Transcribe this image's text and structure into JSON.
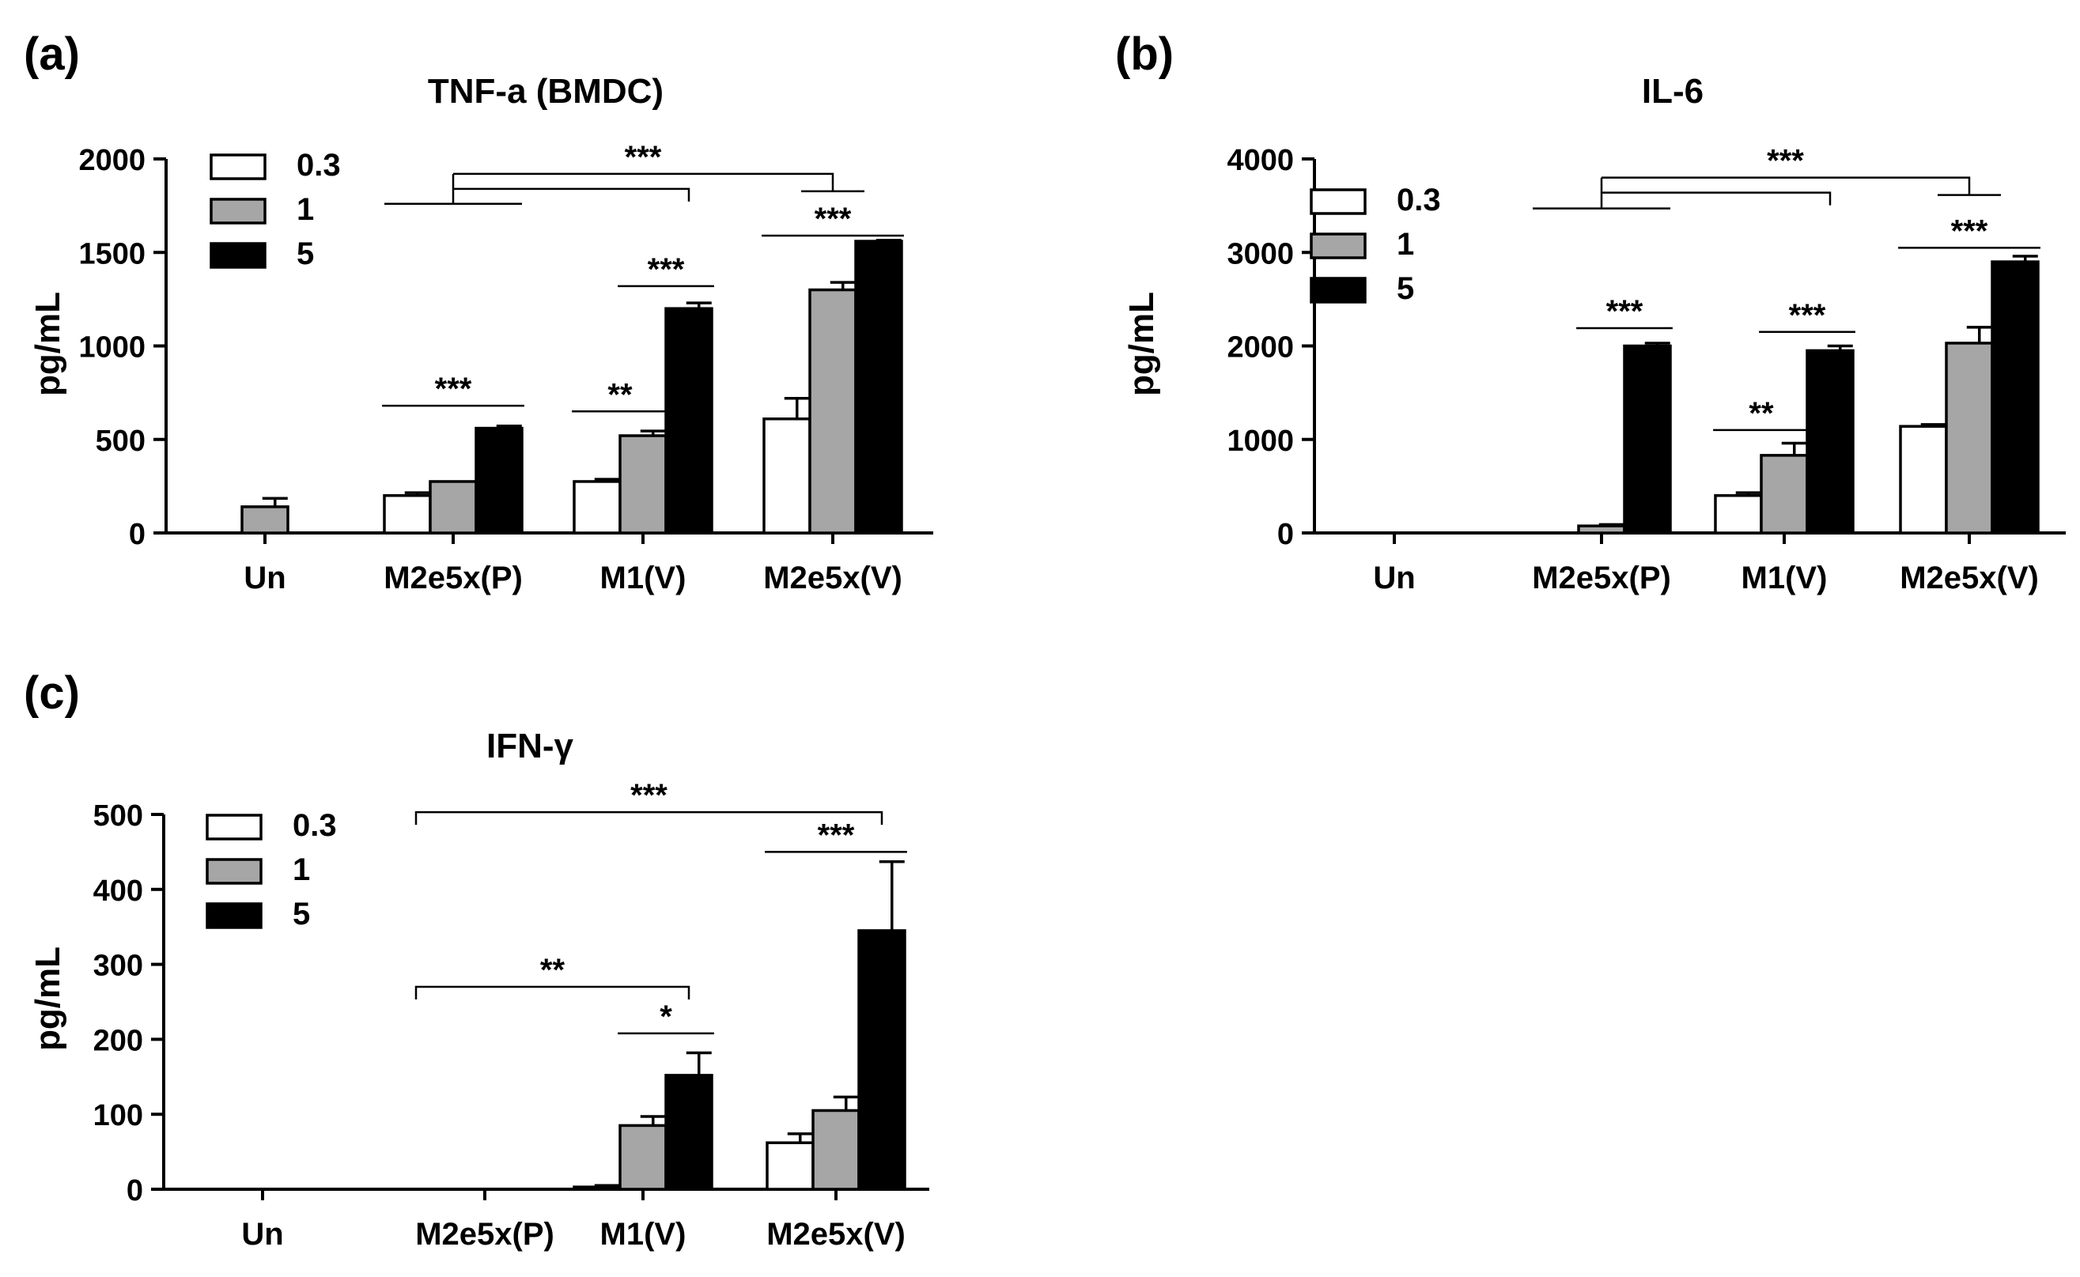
{
  "figure": {
    "panel_labels": [
      "(a)",
      "(b)",
      "(c)"
    ]
  },
  "chart_data": [
    {
      "type": "bar",
      "panel": "(a)",
      "title": "TNF-a (BMDC)",
      "xlabel": "",
      "ylabel": "pg/mL",
      "ylim": [
        0,
        2000
      ],
      "yticks": [
        "0",
        "500",
        "1000",
        "1500",
        "2000"
      ],
      "categories": [
        "Un",
        "M2e5x(P)",
        "M1(V)",
        "M2e5x(V)"
      ],
      "legend": [
        "0.3",
        "1",
        "5"
      ],
      "legend_position": "top-left",
      "series": [
        {
          "name": "0.3",
          "values": [
            null,
            200,
            275,
            610
          ],
          "errors": [
            null,
            15,
            12,
            110
          ],
          "color": "#ffffff"
        },
        {
          "name": "1",
          "values": [
            140,
            275,
            520,
            1300
          ],
          "errors": [
            45,
            0,
            25,
            40
          ],
          "color": "#a6a6a6"
        },
        {
          "name": "5",
          "values": [
            null,
            560,
            1200,
            1560
          ],
          "errors": [
            null,
            12,
            30,
            5
          ],
          "color": "#000000"
        }
      ],
      "annotations": [
        {
          "label": "***",
          "kind": "pair",
          "group": 1,
          "from": 0,
          "to": 2,
          "y": 680
        },
        {
          "label": "**",
          "kind": "pair",
          "group": 2,
          "from": 0,
          "to": 1,
          "y": 650
        },
        {
          "label": "***",
          "kind": "pair",
          "group": 2,
          "from": 1,
          "to": 2,
          "y": 1320
        },
        {
          "label": "***",
          "kind": "pair",
          "group": 3,
          "from": 0,
          "to": 2,
          "y": 1590
        },
        {
          "label": "***",
          "kind": "bracket",
          "from_group": 1,
          "to_groups": [
            2,
            3
          ],
          "y": 1760,
          "y_top": 1920,
          "y_mid": 1840
        }
      ]
    },
    {
      "type": "bar",
      "panel": "(b)",
      "title": "IL-6",
      "xlabel": "",
      "ylabel": "pg/mL",
      "ylim": [
        0,
        4000
      ],
      "yticks": [
        "0",
        "1000",
        "2000",
        "3000",
        "4000"
      ],
      "categories": [
        "Un",
        "M2e5x(P)",
        "M1(V)",
        "M2e5x(V)"
      ],
      "legend": [
        "0.3",
        "1",
        "5"
      ],
      "legend_position": "top-left",
      "series": [
        {
          "name": "0.3",
          "values": [
            null,
            null,
            400,
            1140
          ],
          "errors": [
            null,
            null,
            30,
            20
          ],
          "color": "#ffffff"
        },
        {
          "name": "1",
          "values": [
            null,
            75,
            830,
            2030
          ],
          "errors": [
            null,
            15,
            130,
            170
          ],
          "color": "#a6a6a6"
        },
        {
          "name": "5",
          "values": [
            null,
            2000,
            1950,
            2900
          ],
          "errors": [
            null,
            30,
            50,
            60
          ],
          "color": "#000000"
        }
      ],
      "annotations": [
        {
          "label": "***",
          "kind": "pair",
          "group": 1,
          "from": 1,
          "to": 2,
          "y": 2190
        },
        {
          "label": "**",
          "kind": "pair",
          "group": 2,
          "from": 0,
          "to": 1,
          "y": 1100
        },
        {
          "label": "***",
          "kind": "pair",
          "group": 2,
          "from": 1,
          "to": 2,
          "y": 2150
        },
        {
          "label": "***",
          "kind": "pair",
          "group": 3,
          "from": 0,
          "to": 2,
          "y": 3050
        },
        {
          "label": "***",
          "kind": "bracket",
          "from_group": 1,
          "to_groups": [
            2,
            3
          ],
          "y": 3470,
          "y_top": 3800,
          "y_mid": 3640
        }
      ]
    },
    {
      "type": "bar",
      "panel": "(c)",
      "title": "IFN-γ",
      "xlabel": "",
      "ylabel": "pg/mL",
      "ylim": [
        0,
        500
      ],
      "yticks": [
        "0",
        "100",
        "200",
        "300",
        "400",
        "500"
      ],
      "categories": [
        "Un",
        "M2e5x(P)",
        "M1(V)",
        "M2e5x(V)"
      ],
      "legend": [
        "0.3",
        "1",
        "5"
      ],
      "legend_position": "top-left",
      "series": [
        {
          "name": "0.3",
          "values": [
            null,
            null,
            3,
            62
          ],
          "errors": [
            null,
            null,
            2,
            12
          ],
          "color": "#ffffff"
        },
        {
          "name": "1",
          "values": [
            null,
            null,
            85,
            105
          ],
          "errors": [
            null,
            null,
            12,
            18
          ],
          "color": "#a6a6a6"
        },
        {
          "name": "5",
          "values": [
            null,
            null,
            152,
            345
          ],
          "errors": [
            null,
            null,
            30,
            92
          ],
          "color": "#000000"
        }
      ],
      "annotations": [
        {
          "label": "*",
          "kind": "pair",
          "group": 2,
          "from": 1,
          "to": 2,
          "y": 208
        },
        {
          "label": "***",
          "kind": "pair",
          "group": 3,
          "from": 0,
          "to": 2,
          "y": 450
        },
        {
          "label": "**",
          "kind": "span",
          "from_group": 1,
          "to_group": 2,
          "to_bar": 2,
          "y": 270
        },
        {
          "label": "***",
          "kind": "span",
          "from_group": 1,
          "to_group": 3,
          "to_bar": 2,
          "y": 503
        }
      ]
    }
  ]
}
